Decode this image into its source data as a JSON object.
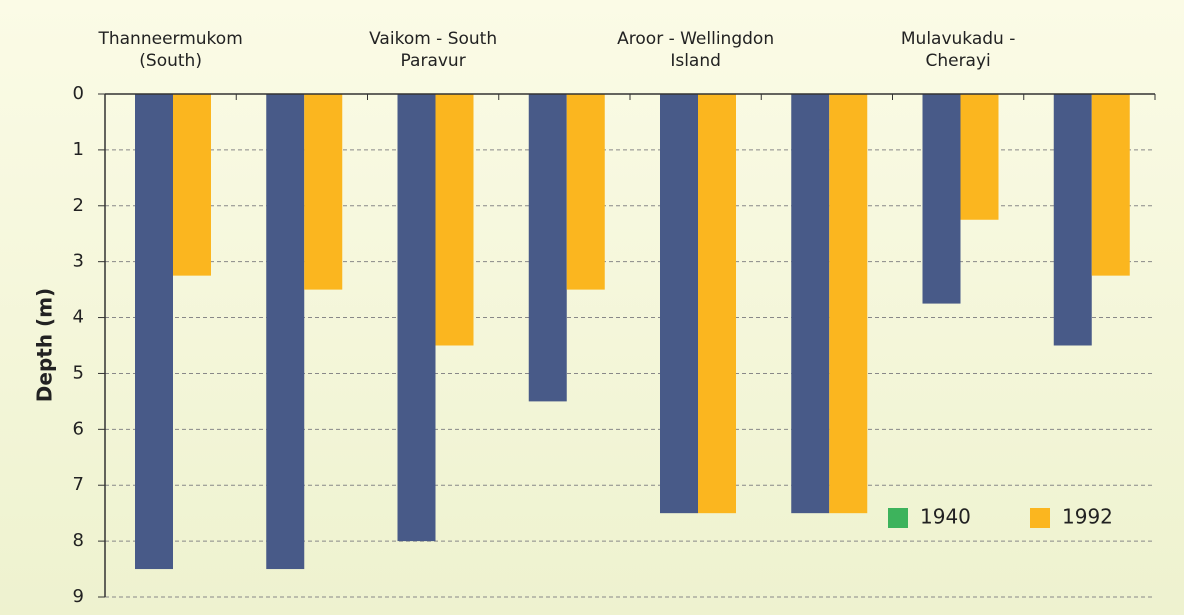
{
  "chart_data": {
    "type": "bar",
    "y_label": "Depth (m)",
    "categories": [
      "Thanneermukom (South)",
      null,
      "Vaikom - South Paravur",
      null,
      "Aroor - Wellingdon Island",
      null,
      "Mulavukadu - Cherayi",
      null
    ],
    "series": [
      {
        "name": "1940",
        "color": "#485a88",
        "legend_color": "#3db35c",
        "values": [
          8.5,
          8.5,
          8,
          5.5,
          7.5,
          7.5,
          3.75,
          4.5
        ]
      },
      {
        "name": "1992",
        "color": "#fbb61f",
        "legend_color": "#fbb61f",
        "values": [
          3.25,
          3.5,
          4.5,
          3.5,
          7.5,
          7.5,
          2.25,
          3.25
        ]
      }
    ],
    "ylim": [
      0,
      9
    ],
    "yticks": [
      0,
      1,
      2,
      3,
      4,
      5,
      6,
      7,
      8,
      9
    ],
    "y_inverted": true,
    "grid": true,
    "legend": "lower right"
  }
}
